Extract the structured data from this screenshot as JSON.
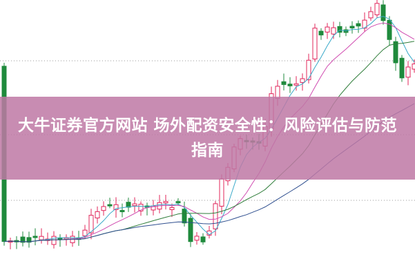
{
  "article": {
    "title": "大牛证券官方网站 场外配资安全性：风险评估与防范指南"
  },
  "colors": {
    "banner": "#c68bb0",
    "candle_up": "#e0245a",
    "candle_down": "#1f8a3c",
    "ma_short": "#39a9c9",
    "ma_mid": "#d04ab0",
    "ma_long": "#2f7d3a",
    "ma_longest": "#2f4f8f",
    "grid": "#999999"
  }
}
